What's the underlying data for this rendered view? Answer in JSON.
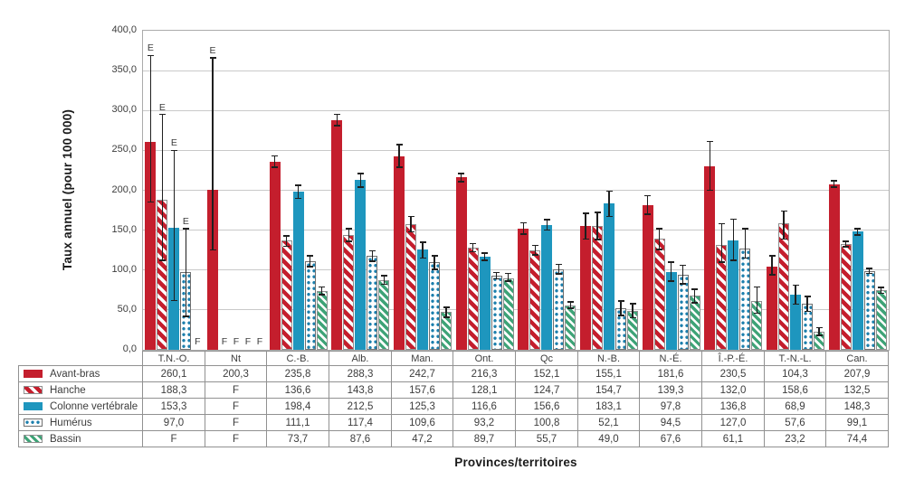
{
  "figure": {
    "ylabel": "Taux annuel (pour 100 000)",
    "xlabel": "Provinces/territoires"
  },
  "chart_data": {
    "type": "bar",
    "title": "",
    "ylabel": "Taux annuel (pour 100 000)",
    "xlabel": "Provinces/territoires",
    "ylim": [
      0,
      400
    ],
    "ytick_step": 50,
    "ytick_labels": [
      "400,0",
      "350,0",
      "300,0",
      "250,0",
      "200,0",
      "150,0",
      "100,0",
      "50,0",
      "0,0"
    ],
    "grid": true,
    "legend_position": "table-left-column",
    "categories": [
      "T.N.-O.",
      "Nt",
      "C.-B.",
      "Alb.",
      "Man.",
      "Ont.",
      "Qc",
      "N.-B.",
      "N.-É.",
      "Î.-P.-É.",
      "T.-N.-L.",
      "Can."
    ],
    "series": [
      {
        "name": "Avant-bras",
        "pattern": "solid",
        "color": "#C41E2D",
        "values": [
          260.1,
          200.3,
          235.8,
          288.3,
          242.7,
          216.3,
          152.1,
          155.1,
          181.6,
          230.5,
          104.3,
          207.9
        ],
        "display": [
          "260,1",
          "200,3",
          "235,8",
          "288,3",
          "242,7",
          "216,3",
          "152,1",
          "155,1",
          "181,6",
          "230,5",
          "104,3",
          "207,9"
        ],
        "err_lo": [
          185,
          125,
          229,
          281,
          229,
          211,
          145,
          139,
          170,
          200,
          94,
          204
        ],
        "err_hi": [
          369,
          366,
          243,
          295,
          257,
          221,
          159,
          171,
          193,
          261,
          118,
          212
        ],
        "flags": [
          "E",
          "E",
          null,
          null,
          null,
          null,
          null,
          null,
          null,
          null,
          null,
          null
        ]
      },
      {
        "name": "Hanche",
        "pattern": "diagonal-stripes",
        "color": "#C41E2D",
        "values": [
          188.3,
          null,
          136.6,
          143.8,
          157.6,
          128.1,
          124.7,
          154.7,
          139.3,
          132.0,
          158.6,
          132.5
        ],
        "display": [
          "188,3",
          "F",
          "136,6",
          "143,8",
          "157,6",
          "128,1",
          "124,7",
          "154,7",
          "139,3",
          "132,0",
          "158,6",
          "132,5"
        ],
        "err_lo": [
          112,
          null,
          130,
          136,
          148,
          123,
          119,
          138,
          126,
          110,
          139,
          129
        ],
        "err_hi": [
          295,
          null,
          143,
          152,
          167,
          133,
          131,
          172,
          152,
          158,
          174,
          136
        ],
        "flags": [
          "E",
          "F",
          null,
          null,
          null,
          null,
          null,
          null,
          null,
          null,
          null,
          null
        ]
      },
      {
        "name": "Colonne vertébrale",
        "pattern": "solid",
        "color": "#1E96BE",
        "values": [
          153.3,
          null,
          198.4,
          212.5,
          125.3,
          116.6,
          156.6,
          183.1,
          97.8,
          136.8,
          68.9,
          148.3
        ],
        "display": [
          "153,3",
          "F",
          "198,4",
          "212,5",
          "125,3",
          "116,6",
          "156,6",
          "183,1",
          "97,8",
          "136,8",
          "68,9",
          "148,3"
        ],
        "err_lo": [
          62,
          null,
          190,
          204,
          115,
          112,
          150,
          167,
          86,
          112,
          57,
          144
        ],
        "err_hi": [
          250,
          null,
          206,
          221,
          135,
          121,
          163,
          199,
          110,
          164,
          81,
          152
        ],
        "flags": [
          "E",
          "F",
          null,
          null,
          null,
          null,
          null,
          null,
          null,
          null,
          null,
          null
        ]
      },
      {
        "name": "Humérus",
        "pattern": "dots",
        "color": "#1C7FAD",
        "values": [
          97.0,
          null,
          111.1,
          117.4,
          109.6,
          93.2,
          100.8,
          52.1,
          94.5,
          127.0,
          57.6,
          99.1
        ],
        "display": [
          "97,0",
          "F",
          "111,1",
          "117,4",
          "109,6",
          "93,2",
          "100,8",
          "52,1",
          "94,5",
          "127,0",
          "57,6",
          "99,1"
        ],
        "err_lo": [
          42,
          null,
          104,
          111,
          101,
          89,
          95,
          43,
          83,
          115,
          48,
          96
        ],
        "err_hi": [
          152,
          null,
          118,
          124,
          118,
          97,
          107,
          61,
          106,
          152,
          67,
          102
        ],
        "flags": [
          "E",
          "F",
          null,
          null,
          null,
          null,
          null,
          null,
          null,
          null,
          null,
          null
        ]
      },
      {
        "name": "Bassin",
        "pattern": "diagonal-stripes",
        "color": "#3EA377",
        "values": [
          null,
          null,
          73.7,
          87.6,
          47.2,
          89.7,
          55.7,
          49.0,
          67.6,
          61.1,
          23.2,
          74.4
        ],
        "display": [
          "F",
          "F",
          "73,7",
          "87,6",
          "47,2",
          "89,7",
          "55,7",
          "49,0",
          "67,6",
          "61,1",
          "23,2",
          "74,4"
        ],
        "err_lo": [
          null,
          null,
          69,
          82,
          41,
          86,
          52,
          40,
          59,
          46,
          18,
          71
        ],
        "err_hi": [
          null,
          null,
          79,
          93,
          53,
          96,
          60,
          58,
          76,
          79,
          28,
          78
        ],
        "flags": [
          "F",
          "F",
          null,
          null,
          null,
          null,
          null,
          null,
          null,
          null,
          null,
          null
        ]
      }
    ]
  }
}
